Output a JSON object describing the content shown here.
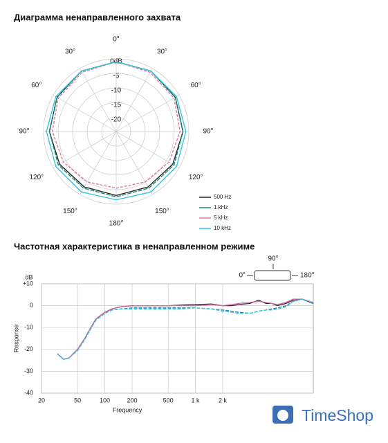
{
  "chart_data": [
    {
      "type": "polar",
      "title": "Диаграмма ненаправленного захвата",
      "theta": [
        0,
        30,
        60,
        90,
        120,
        150,
        180,
        210,
        240,
        270,
        300,
        330,
        360
      ],
      "thetaticks": [
        {
          "value": 0,
          "label": "0°"
        },
        {
          "value": 30,
          "label": "30°"
        },
        {
          "value": 60,
          "label": "60°"
        },
        {
          "value": 90,
          "label": "90°"
        },
        {
          "value": 120,
          "label": "120°"
        },
        {
          "value": 150,
          "label": "150°"
        },
        {
          "value": 180,
          "label": "180°"
        }
      ],
      "rlim": [
        -25,
        0
      ],
      "rticks": [
        {
          "value": 0,
          "label": "0dB"
        },
        -5,
        -10,
        -15,
        -20
      ],
      "legend": "bottom-right",
      "series": [
        {
          "name": "500 Hz",
          "color": "#222222",
          "values": [
            -1,
            -1,
            -1.5,
            -2,
            -2.5,
            -3,
            -3,
            -3,
            -2.5,
            -2,
            -1.5,
            -1,
            -1
          ]
        },
        {
          "name": "1 kHz",
          "color": "#1a8a7a",
          "values": [
            -1,
            -1,
            -1.5,
            -2,
            -2,
            -2.5,
            -2.5,
            -2.5,
            -2,
            -2,
            -1.5,
            -1,
            -1
          ]
        },
        {
          "name": "5 kHz",
          "color": "#e07aa0",
          "values": [
            -1,
            -1.5,
            -2,
            -3,
            -4,
            -5,
            -5.5,
            -5,
            -4,
            -3,
            -2,
            -1.5,
            -1
          ]
        },
        {
          "name": "10 kHz",
          "color": "#35c3df",
          "values": [
            -1,
            -1,
            -1,
            -1,
            -1,
            -1,
            -1.5,
            -1,
            -1,
            -1,
            -1,
            -1,
            -1
          ]
        }
      ]
    },
    {
      "type": "line",
      "title": "Частотная характеристика в ненаправленном режиме",
      "x_label": "Frequency",
      "y_label": "Response",
      "y_unit": "dB",
      "annotations": [
        "90°",
        "0°",
        "180°"
      ],
      "xscale": "log",
      "grid": true,
      "xlim": [
        20,
        20000
      ],
      "xticks": [
        20,
        50,
        100,
        200,
        500,
        {
          "value": 1000,
          "label": "1 k"
        },
        {
          "value": 2000,
          "label": "2 k"
        }
      ],
      "ylim": [
        -40,
        10
      ],
      "yticks": [
        {
          "value": 10,
          "label": "+10"
        },
        0,
        -10,
        -20,
        -30,
        -40
      ],
      "x": [
        30,
        35,
        40,
        50,
        60,
        70,
        80,
        100,
        120,
        150,
        200,
        300,
        500,
        700,
        1000,
        1500,
        2000,
        2500,
        3000,
        4000,
        5000,
        6000,
        7000,
        8000,
        10000,
        12000,
        15000,
        20000
      ],
      "series": [
        {
          "color": "#3a2440",
          "values": [
            -22,
            -24.5,
            -24,
            -20,
            -15,
            -10,
            -6,
            -3,
            -1.5,
            -0.5,
            0,
            0,
            0,
            0.3,
            0.5,
            0.8,
            0,
            0,
            0.5,
            1,
            2.5,
            1,
            1,
            0,
            1,
            2.5,
            3,
            1
          ]
        },
        {
          "color": "#d06a9a",
          "values": [
            -22,
            -24.5,
            -24,
            -20,
            -15,
            -10,
            -6,
            -3,
            -1.5,
            -0.5,
            0,
            0,
            0,
            0,
            0,
            0.5,
            0,
            0.5,
            1,
            1.5,
            2,
            1.5,
            1,
            0.5,
            1.5,
            3,
            3,
            1.5
          ]
        },
        {
          "color": "#2a7ab0",
          "values": [
            -22,
            -24.5,
            -24,
            -20.5,
            -15.5,
            -10.5,
            -6.5,
            -3.5,
            -2,
            -1.5,
            -1,
            -1,
            -1,
            -1,
            -1,
            -1.5,
            -2,
            -2.5,
            -3,
            -3.5,
            -2.5,
            -2,
            -1.5,
            -1,
            0,
            2,
            3,
            1
          ]
        },
        {
          "color": "#35c3df",
          "values": [
            -22,
            -24.5,
            -24,
            -20.5,
            -15.5,
            -10.5,
            -6.5,
            -3.5,
            -2,
            -1.5,
            -1.5,
            -1.5,
            -1.5,
            -1.5,
            -1,
            -1.5,
            -2.5,
            -3,
            -3.5,
            -3.5,
            -2.5,
            -2,
            -2,
            -1.5,
            -0.5,
            2,
            3,
            1.5
          ]
        }
      ]
    }
  ],
  "watermark": "TimeShop"
}
